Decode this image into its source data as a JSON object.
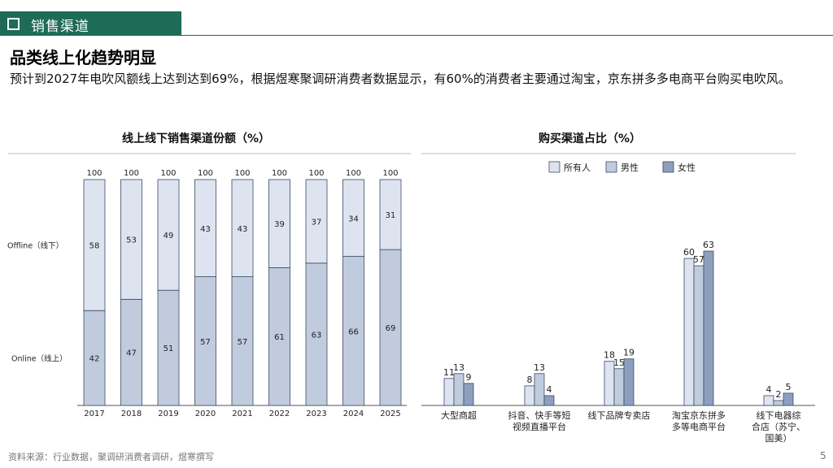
{
  "header": {
    "section_label": "销售渠道"
  },
  "main_title": "品类线上化趋势明显",
  "description": "预计到2027年电吹风额线上达到达到69%，根据煜寒聚调研消费者数据显示，有60%的消费者主要通过淘宝，京东拼多多电商平台购买电吹风。",
  "footer": {
    "source": "资料来源：行业数据，聚调研消费者调研，煜寒撰写",
    "page_number": "5"
  },
  "colors": {
    "header_green": "#1e6b57",
    "offline": "#dde4ef",
    "online": "#c0cbde",
    "all": "#dde4ef",
    "male": "#c0cbde",
    "female": "#8d9fbd",
    "bar_stroke": "#3b4a66"
  },
  "chart_data": [
    {
      "type": "bar",
      "stacked": true,
      "title": "线上线下销售渠道份额（%）",
      "categories": [
        "2017",
        "2018",
        "2019",
        "2020",
        "2021",
        "2022",
        "2023",
        "2024",
        "2025"
      ],
      "series": [
        {
          "name": "Online（线上）",
          "values": [
            42,
            47,
            51,
            57,
            57,
            61,
            63,
            66,
            69
          ]
        },
        {
          "name": "Offline（线下）",
          "values": [
            58,
            53,
            49,
            43,
            43,
            39,
            37,
            34,
            31
          ]
        }
      ],
      "totals": [
        100,
        100,
        100,
        100,
        100,
        100,
        100,
        100,
        100
      ],
      "ylim": [
        0,
        100
      ],
      "legend": "left"
    },
    {
      "type": "bar",
      "title": "购买渠道占比（%）",
      "categories": [
        "大型商超",
        "抖音、快手等短视频直播平台",
        "线下品牌专卖店",
        "淘宝京东拼多多等电商平台",
        "线下电器综合店（苏宁、国美）"
      ],
      "category_lines": [
        [
          "大型商超"
        ],
        [
          "抖音、快手等短",
          "视频直播平台"
        ],
        [
          "线下品牌专卖店"
        ],
        [
          "淘宝京东拼多",
          "多等电商平台"
        ],
        [
          "线下电器综",
          "合店（苏宁、",
          "国美）"
        ]
      ],
      "series": [
        {
          "name": "所有人",
          "values": [
            11,
            8,
            18,
            60,
            4
          ]
        },
        {
          "name": "男性",
          "values": [
            13,
            13,
            15,
            57,
            2
          ]
        },
        {
          "name": "女性",
          "values": [
            9,
            4,
            19,
            63,
            5
          ]
        }
      ],
      "ylim": [
        0,
        70
      ],
      "legend": "top-right"
    }
  ]
}
